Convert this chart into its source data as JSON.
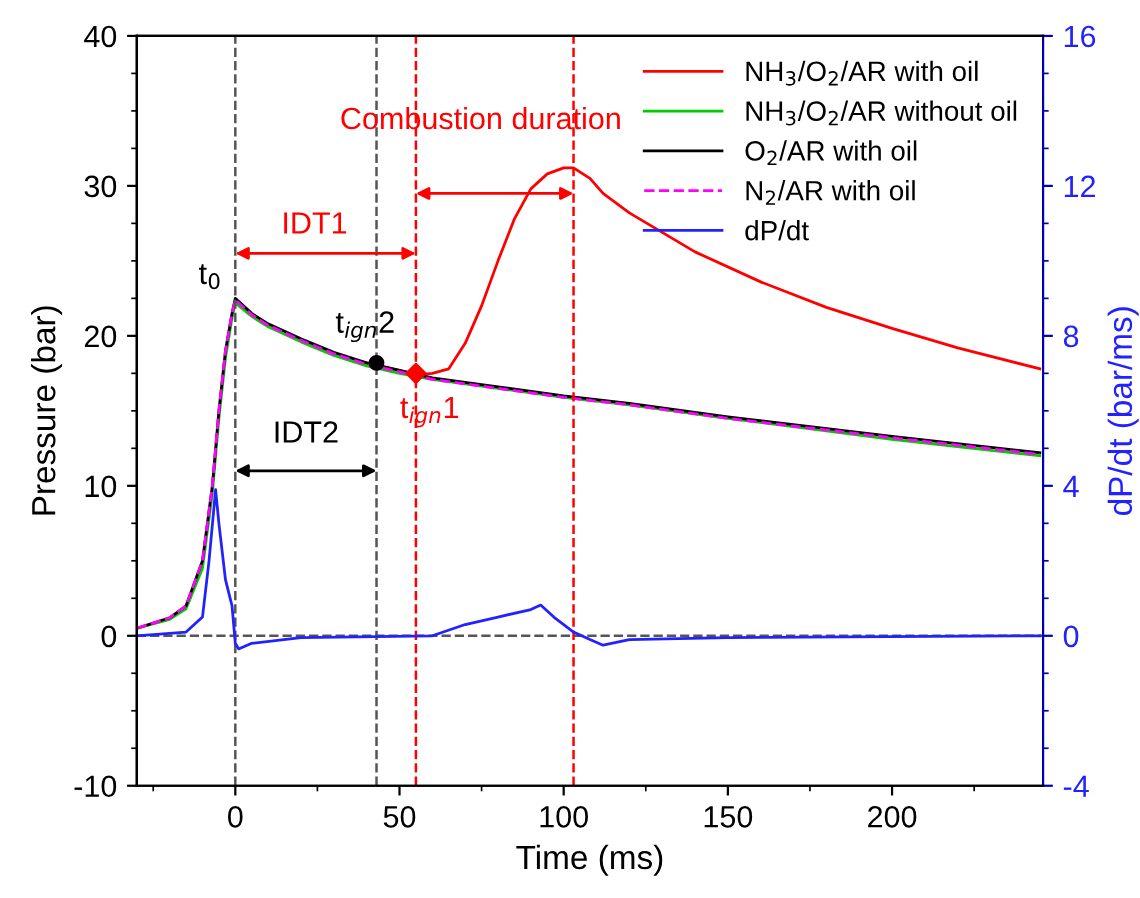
{
  "chart_data": {
    "type": "line",
    "xlabel": "Time (ms)",
    "ylabel": "Pressure (bar)",
    "y2label": "dP/dt (bar/ms)",
    "xlim": [
      -30,
      246
    ],
    "xticks": [
      0,
      50,
      100,
      150,
      200
    ],
    "ylim": [
      -10,
      40
    ],
    "yticks": [
      -10,
      0,
      10,
      20,
      30,
      40
    ],
    "y2lim": [
      -4,
      16
    ],
    "y2ticks": [
      -4,
      0,
      4,
      8,
      12,
      16
    ],
    "legend": "top right",
    "grid": false,
    "line_style": "solid",
    "marker": "none",
    "series": [
      {
        "name": "NH$_{3}$/O$_{2}$/AR with oil",
        "color": "#ff0000",
        "x": [
          40,
          50,
          55,
          60,
          65,
          70,
          75,
          80,
          85,
          90,
          95,
          100,
          103,
          108,
          112,
          120,
          140,
          160,
          180,
          200,
          220,
          245
        ],
        "values": [
          18.2,
          17.7,
          17.4,
          17.5,
          17.8,
          19.5,
          22,
          25,
          27.8,
          29.8,
          30.8,
          31.2,
          31.2,
          30.5,
          29.5,
          28.2,
          25.6,
          23.6,
          21.9,
          20.5,
          19.2,
          17.8
        ]
      },
      {
        "name": "NH$_{3}$/O$_{2}$/AR without oil",
        "color": "#00cc00",
        "x": [
          -30,
          -20,
          -15,
          -10,
          -7,
          -5,
          -3,
          -1,
          0,
          5,
          10,
          20,
          30,
          40,
          50,
          60,
          80,
          100,
          120,
          150,
          200,
          245
        ],
        "values": [
          0.5,
          1.1,
          1.8,
          4.5,
          9.5,
          14.5,
          18.5,
          21.2,
          22.2,
          21.3,
          20.6,
          19.6,
          18.7,
          18,
          17.5,
          17.1,
          16.5,
          15.9,
          15.4,
          14.5,
          13.1,
          12.0
        ]
      },
      {
        "name": "O$_{2}$/AR with oil",
        "color": "#000000",
        "x": [
          -30,
          -20,
          -15,
          -10,
          -7,
          -5,
          -3,
          -1,
          0,
          5,
          10,
          20,
          30,
          40,
          50,
          60,
          80,
          100,
          120,
          150,
          200,
          245
        ],
        "values": [
          0.5,
          1.2,
          2,
          5,
          10,
          15,
          19,
          21.5,
          22.5,
          21.5,
          20.8,
          19.8,
          18.9,
          18.2,
          17.7,
          17.2,
          16.6,
          16,
          15.5,
          14.6,
          13.3,
          12.2
        ]
      },
      {
        "name": "N$_{2}$/AR with oil",
        "color": "#ff00ff",
        "line_style": "dashed",
        "x": [
          -30,
          -20,
          -15,
          -10,
          -7,
          -5,
          -3,
          -1,
          0,
          5,
          10,
          20,
          30,
          40,
          50,
          60,
          80,
          100,
          120,
          150,
          200,
          245
        ],
        "values": [
          0.5,
          1.2,
          2,
          5,
          10,
          15,
          19,
          21.5,
          22.4,
          21.4,
          20.7,
          19.7,
          18.8,
          18.1,
          17.6,
          17.1,
          16.5,
          15.9,
          15.4,
          14.5,
          13.2,
          12.1
        ]
      },
      {
        "name": "dP/dt",
        "color": "#2222ff",
        "axis": "y2",
        "x": [
          -30,
          -15,
          -10,
          -8,
          -6,
          -5,
          -3,
          -1,
          0,
          1,
          5,
          20,
          60,
          70,
          80,
          90,
          93,
          97,
          103,
          108,
          112,
          120,
          150,
          245
        ],
        "values": [
          0,
          0.1,
          0.5,
          2,
          3.9,
          3.0,
          1.5,
          0.8,
          -0.2,
          -0.35,
          -0.2,
          -0.05,
          0,
          0.3,
          0.5,
          0.7,
          0.82,
          0.5,
          0.1,
          -0.1,
          -0.25,
          -0.1,
          -0.05,
          0
        ]
      },
      {
        "type": "scatter",
        "marker": "circle",
        "color": "#000000",
        "x": [
          43
        ],
        "values": [
          18.2
        ]
      },
      {
        "type": "scatter",
        "marker": "diamond",
        "color": "#ff0000",
        "x": [
          55
        ],
        "values": [
          17.5
        ]
      }
    ],
    "ref_lines": [
      {
        "axis": "y",
        "value": 0,
        "color": "#555555",
        "line_style": "dashed"
      },
      {
        "axis": "x",
        "value": 0,
        "color": "#555555",
        "line_style": "dashed"
      },
      {
        "axis": "x",
        "value": 43,
        "color": "#555555",
        "line_style": "dashed"
      },
      {
        "axis": "x",
        "value": 55,
        "color": "#ff0000",
        "line_style": "dashed"
      },
      {
        "axis": "x",
        "value": 103,
        "color": "#ff0000",
        "line_style": "dashed"
      }
    ],
    "annotations": [
      {
        "text": "Combustion duration",
        "x": 103,
        "y": 29.5
      },
      {
        "text": "IDT1",
        "x": 55,
        "y": 25.5
      },
      {
        "text": "IDT2",
        "x": 43,
        "y": 11
      },
      {
        "text": "t$_{0}$",
        "x": 0,
        "y": 22.5
      },
      {
        "text": "t$_{ign}$2",
        "x": 43,
        "y": 18.2
      },
      {
        "text": "t$_{ign}$1",
        "x": 55,
        "y": 17.5
      }
    ]
  }
}
